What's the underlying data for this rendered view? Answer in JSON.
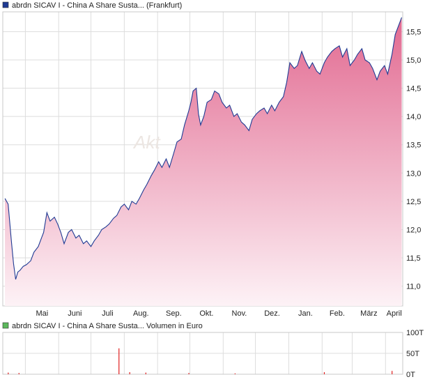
{
  "price_panel": {
    "legend_label": "abrdn SICAV I - China A Share Susta... (Frankfurt)",
    "legend_color": "#1f3a93"
  },
  "volume_panel": {
    "legend_label": "abrdn SICAV I - China A Share Susta... Volumen in Euro",
    "legend_color": "#5cb85c"
  },
  "watermark": "Akt",
  "colors": {
    "line": "#1f3a93",
    "area_top": "#e26a91",
    "area_bottom": "#fdf2f6",
    "volume_bar": "#e02020",
    "grid": "#dddddd"
  },
  "chart_data": [
    {
      "type": "area",
      "x_ticks": [
        "Mai",
        "Juni",
        "Juli",
        "Aug.",
        "Sep.",
        "Okt.",
        "Nov.",
        "Dez.",
        "Jan.",
        "Feb.",
        "März",
        "April"
      ],
      "y_ticks": [
        "11,0",
        "11,5",
        "12,0",
        "12,5",
        "13,0",
        "13,5",
        "14,0",
        "14,5",
        "15,0",
        "15,5"
      ],
      "ylim": [
        10.65,
        15.85
      ],
      "grid": true,
      "series": [
        {
          "points": [
            [
              "2024-04-12",
              12.55
            ],
            [
              "2024-04-15",
              12.45
            ],
            [
              "2024-04-18",
              11.8
            ],
            [
              "2024-04-20",
              11.4
            ],
            [
              "2024-04-22",
              11.12
            ],
            [
              "2024-04-24",
              11.25
            ],
            [
              "2024-04-26",
              11.28
            ],
            [
              "2024-04-29",
              11.35
            ],
            [
              "2024-05-02",
              11.38
            ],
            [
              "2024-05-06",
              11.45
            ],
            [
              "2024-05-09",
              11.6
            ],
            [
              "2024-05-13",
              11.7
            ],
            [
              "2024-05-16",
              11.85
            ],
            [
              "2024-05-18",
              11.95
            ],
            [
              "2024-05-21",
              12.3
            ],
            [
              "2024-05-24",
              12.15
            ],
            [
              "2024-05-28",
              12.22
            ],
            [
              "2024-05-31",
              12.1
            ],
            [
              "2024-06-03",
              11.95
            ],
            [
              "2024-06-06",
              11.75
            ],
            [
              "2024-06-10",
              11.95
            ],
            [
              "2024-06-13",
              12.0
            ],
            [
              "2024-06-17",
              11.85
            ],
            [
              "2024-06-20",
              11.9
            ],
            [
              "2024-06-24",
              11.75
            ],
            [
              "2024-06-27",
              11.8
            ],
            [
              "2024-07-01",
              11.7
            ],
            [
              "2024-07-04",
              11.8
            ],
            [
              "2024-07-08",
              11.9
            ],
            [
              "2024-07-11",
              12.0
            ],
            [
              "2024-07-15",
              12.05
            ],
            [
              "2024-07-18",
              12.1
            ],
            [
              "2024-07-22",
              12.2
            ],
            [
              "2024-07-25",
              12.25
            ],
            [
              "2024-07-29",
              12.4
            ],
            [
              "2024-08-01",
              12.45
            ],
            [
              "2024-08-05",
              12.35
            ],
            [
              "2024-08-08",
              12.5
            ],
            [
              "2024-08-12",
              12.45
            ],
            [
              "2024-08-15",
              12.55
            ],
            [
              "2024-08-19",
              12.7
            ],
            [
              "2024-08-22",
              12.8
            ],
            [
              "2024-08-26",
              12.95
            ],
            [
              "2024-08-29",
              13.05
            ],
            [
              "2024-09-02",
              13.2
            ],
            [
              "2024-09-05",
              13.1
            ],
            [
              "2024-09-09",
              13.25
            ],
            [
              "2024-09-12",
              13.1
            ],
            [
              "2024-09-16",
              13.35
            ],
            [
              "2024-09-19",
              13.55
            ],
            [
              "2024-09-23",
              13.6
            ],
            [
              "2024-09-26",
              13.85
            ],
            [
              "2024-09-30",
              14.1
            ],
            [
              "2024-10-02",
              14.25
            ],
            [
              "2024-10-04",
              14.45
            ],
            [
              "2024-10-07",
              14.5
            ],
            [
              "2024-10-09",
              14.05
            ],
            [
              "2024-10-11",
              13.85
            ],
            [
              "2024-10-14",
              14.0
            ],
            [
              "2024-10-17",
              14.25
            ],
            [
              "2024-10-21",
              14.3
            ],
            [
              "2024-10-24",
              14.45
            ],
            [
              "2024-10-28",
              14.4
            ],
            [
              "2024-10-31",
              14.25
            ],
            [
              "2024-11-04",
              14.15
            ],
            [
              "2024-11-07",
              14.2
            ],
            [
              "2024-11-11",
              14.0
            ],
            [
              "2024-11-14",
              14.05
            ],
            [
              "2024-11-18",
              13.9
            ],
            [
              "2024-11-21",
              13.85
            ],
            [
              "2024-11-25",
              13.75
            ],
            [
              "2024-11-28",
              13.95
            ],
            [
              "2024-12-02",
              14.05
            ],
            [
              "2024-12-05",
              14.1
            ],
            [
              "2024-12-09",
              14.15
            ],
            [
              "2024-12-12",
              14.05
            ],
            [
              "2024-12-16",
              14.2
            ],
            [
              "2024-12-19",
              14.1
            ],
            [
              "2024-12-23",
              14.25
            ],
            [
              "2024-12-27",
              14.35
            ],
            [
              "2024-12-30",
              14.6
            ],
            [
              "2025-01-02",
              14.95
            ],
            [
              "2025-01-06",
              14.85
            ],
            [
              "2025-01-09",
              14.9
            ],
            [
              "2025-01-13",
              15.15
            ],
            [
              "2025-01-16",
              15.0
            ],
            [
              "2025-01-20",
              14.85
            ],
            [
              "2025-01-23",
              14.95
            ],
            [
              "2025-01-27",
              14.8
            ],
            [
              "2025-01-30",
              14.75
            ],
            [
              "2025-02-03",
              14.95
            ],
            [
              "2025-02-06",
              15.05
            ],
            [
              "2025-02-10",
              15.15
            ],
            [
              "2025-02-13",
              15.2
            ],
            [
              "2025-02-17",
              15.25
            ],
            [
              "2025-02-20",
              15.05
            ],
            [
              "2025-02-24",
              15.2
            ],
            [
              "2025-02-27",
              14.9
            ],
            [
              "2025-03-03",
              15.0
            ],
            [
              "2025-03-06",
              15.1
            ],
            [
              "2025-03-10",
              15.2
            ],
            [
              "2025-03-13",
              15.0
            ],
            [
              "2025-03-17",
              14.95
            ],
            [
              "2025-03-20",
              14.85
            ],
            [
              "2025-03-24",
              14.65
            ],
            [
              "2025-03-27",
              14.8
            ],
            [
              "2025-03-31",
              14.9
            ],
            [
              "2025-04-03",
              14.75
            ],
            [
              "2025-04-07",
              15.1
            ],
            [
              "2025-04-10",
              15.45
            ],
            [
              "2025-04-14",
              15.65
            ],
            [
              "2025-04-16",
              15.75
            ]
          ]
        }
      ]
    },
    {
      "type": "bar",
      "y_ticks": [
        "0T",
        "50T",
        "100T"
      ],
      "ylim": [
        0,
        100
      ],
      "grid": true,
      "series": [
        {
          "points": [
            [
              "2024-04-15",
              4
            ],
            [
              "2024-04-25",
              3
            ],
            [
              "2024-07-27",
              62
            ],
            [
              "2024-08-06",
              5
            ],
            [
              "2024-08-21",
              4
            ],
            [
              "2024-09-30",
              3
            ],
            [
              "2024-11-12",
              2
            ],
            [
              "2025-02-03",
              5
            ],
            [
              "2025-04-07",
              8
            ]
          ]
        }
      ]
    }
  ]
}
